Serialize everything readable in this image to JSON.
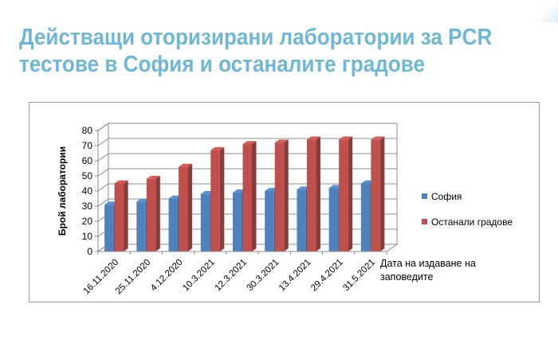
{
  "slide": {
    "title_line1": "Действащи оторизирани лаборатории за PCR",
    "title_line2": "тестове в София и останалите градове"
  },
  "chart_data": {
    "type": "bar",
    "categories": [
      "16.11.2020",
      "25.11.2020",
      "4.12.2020",
      "10.3.2021",
      "12.3.2021",
      "30.3.2021",
      "13.4.2021",
      "29.4.2021",
      "31.5.2021"
    ],
    "series": [
      {
        "name": "София",
        "color": "#4f81bd",
        "values": [
          31,
          33,
          35,
          38,
          39,
          40,
          41,
          42,
          45
        ]
      },
      {
        "name": "Останали градове",
        "color": "#c0504d",
        "values": [
          45,
          48,
          56,
          67,
          71,
          72,
          74,
          74,
          74
        ]
      }
    ],
    "ylabel": "Брой лаборатории",
    "xlabel_line1": "Дата на издаване на",
    "xlabel_line2": "заповедите",
    "ylim": [
      0,
      80
    ],
    "ytick_step": 10,
    "grid": true,
    "legend_position": "right",
    "style": "3d-clustered-column"
  }
}
